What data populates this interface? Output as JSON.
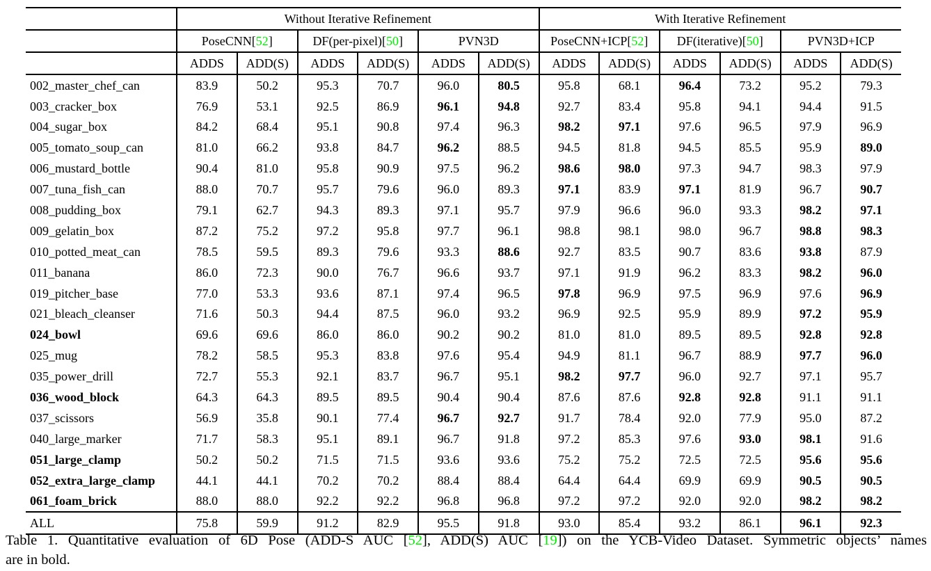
{
  "colors": {
    "reference_green": "#00f000",
    "text": "#000000",
    "rule": "#000000",
    "background": "#ffffff"
  },
  "table": {
    "group_headers": [
      "Without Iterative Refinement",
      "With Iterative Refinement"
    ],
    "method_headers": [
      {
        "label": "PoseCNN",
        "ref": "52"
      },
      {
        "label": "DF(per-pixel)",
        "ref": "50"
      },
      {
        "label": "PVN3D",
        "ref": ""
      },
      {
        "label": "PoseCNN+ICP",
        "ref": "52"
      },
      {
        "label": "DF(iterative)",
        "ref": "50"
      },
      {
        "label": "PVN3D+ICP",
        "ref": ""
      }
    ],
    "metric_header_pair": [
      "ADDS",
      "ADD(S)"
    ],
    "rows": [
      {
        "name": "002_master_chef_can",
        "bold_name": false,
        "values": [
          "83.9",
          "50.2",
          "95.3",
          "70.7",
          "96.0",
          "80.5",
          "95.8",
          "68.1",
          "96.4",
          "73.2",
          "95.2",
          "79.3"
        ],
        "bold_values": [
          5,
          8
        ]
      },
      {
        "name": "003_cracker_box",
        "bold_name": false,
        "values": [
          "76.9",
          "53.1",
          "92.5",
          "86.9",
          "96.1",
          "94.8",
          "92.7",
          "83.4",
          "95.8",
          "94.1",
          "94.4",
          "91.5"
        ],
        "bold_values": [
          4,
          5
        ]
      },
      {
        "name": "004_sugar_box",
        "bold_name": false,
        "values": [
          "84.2",
          "68.4",
          "95.1",
          "90.8",
          "97.4",
          "96.3",
          "98.2",
          "97.1",
          "97.6",
          "96.5",
          "97.9",
          "96.9"
        ],
        "bold_values": [
          6,
          7
        ]
      },
      {
        "name": "005_tomato_soup_can",
        "bold_name": false,
        "values": [
          "81.0",
          "66.2",
          "93.8",
          "84.7",
          "96.2",
          "88.5",
          "94.5",
          "81.8",
          "94.5",
          "85.5",
          "95.9",
          "89.0"
        ],
        "bold_values": [
          4,
          11
        ]
      },
      {
        "name": "006_mustard_bottle",
        "bold_name": false,
        "values": [
          "90.4",
          "81.0",
          "95.8",
          "90.9",
          "97.5",
          "96.2",
          "98.6",
          "98.0",
          "97.3",
          "94.7",
          "98.3",
          "97.9"
        ],
        "bold_values": [
          6,
          7
        ]
      },
      {
        "name": "007_tuna_fish_can",
        "bold_name": false,
        "values": [
          "88.0",
          "70.7",
          "95.7",
          "79.6",
          "96.0",
          "89.3",
          "97.1",
          "83.9",
          "97.1",
          "81.9",
          "96.7",
          "90.7"
        ],
        "bold_values": [
          6,
          8,
          11
        ]
      },
      {
        "name": "008_pudding_box",
        "bold_name": false,
        "values": [
          "79.1",
          "62.7",
          "94.3",
          "89.3",
          "97.1",
          "95.7",
          "97.9",
          "96.6",
          "96.0",
          "93.3",
          "98.2",
          "97.1"
        ],
        "bold_values": [
          10,
          11
        ]
      },
      {
        "name": "009_gelatin_box",
        "bold_name": false,
        "values": [
          "87.2",
          "75.2",
          "97.2",
          "95.8",
          "97.7",
          "96.1",
          "98.8",
          "98.1",
          "98.0",
          "96.7",
          "98.8",
          "98.3"
        ],
        "bold_values": [
          10,
          11
        ]
      },
      {
        "name": "010_potted_meat_can",
        "bold_name": false,
        "values": [
          "78.5",
          "59.5",
          "89.3",
          "79.6",
          "93.3",
          "88.6",
          "92.7",
          "83.5",
          "90.7",
          "83.6",
          "93.8",
          "87.9"
        ],
        "bold_values": [
          5,
          10
        ]
      },
      {
        "name": "011_banana",
        "bold_name": false,
        "values": [
          "86.0",
          "72.3",
          "90.0",
          "76.7",
          "96.6",
          "93.7",
          "97.1",
          "91.9",
          "96.2",
          "83.3",
          "98.2",
          "96.0"
        ],
        "bold_values": [
          10,
          11
        ]
      },
      {
        "name": "019_pitcher_base",
        "bold_name": false,
        "values": [
          "77.0",
          "53.3",
          "93.6",
          "87.1",
          "97.4",
          "96.5",
          "97.8",
          "96.9",
          "97.5",
          "96.9",
          "97.6",
          "96.9"
        ],
        "bold_values": [
          6,
          11
        ]
      },
      {
        "name": "021_bleach_cleanser",
        "bold_name": false,
        "values": [
          "71.6",
          "50.3",
          "94.4",
          "87.5",
          "96.0",
          "93.2",
          "96.9",
          "92.5",
          "95.9",
          "89.9",
          "97.2",
          "95.9"
        ],
        "bold_values": [
          10,
          11
        ]
      },
      {
        "name": "024_bowl",
        "bold_name": true,
        "values": [
          "69.6",
          "69.6",
          "86.0",
          "86.0",
          "90.2",
          "90.2",
          "81.0",
          "81.0",
          "89.5",
          "89.5",
          "92.8",
          "92.8"
        ],
        "bold_values": [
          10,
          11
        ]
      },
      {
        "name": "025_mug",
        "bold_name": false,
        "values": [
          "78.2",
          "58.5",
          "95.3",
          "83.8",
          "97.6",
          "95.4",
          "94.9",
          "81.1",
          "96.7",
          "88.9",
          "97.7",
          "96.0"
        ],
        "bold_values": [
          10,
          11
        ]
      },
      {
        "name": "035_power_drill",
        "bold_name": false,
        "values": [
          "72.7",
          "55.3",
          "92.1",
          "83.7",
          "96.7",
          "95.1",
          "98.2",
          "97.7",
          "96.0",
          "92.7",
          "97.1",
          "95.7"
        ],
        "bold_values": [
          6,
          7
        ]
      },
      {
        "name": "036_wood_block",
        "bold_name": true,
        "values": [
          "64.3",
          "64.3",
          "89.5",
          "89.5",
          "90.4",
          "90.4",
          "87.6",
          "87.6",
          "92.8",
          "92.8",
          "91.1",
          "91.1"
        ],
        "bold_values": [
          8,
          9
        ]
      },
      {
        "name": "037_scissors",
        "bold_name": false,
        "values": [
          "56.9",
          "35.8",
          "90.1",
          "77.4",
          "96.7",
          "92.7",
          "91.7",
          "78.4",
          "92.0",
          "77.9",
          "95.0",
          "87.2"
        ],
        "bold_values": [
          4,
          5
        ]
      },
      {
        "name": "040_large_marker",
        "bold_name": false,
        "values": [
          "71.7",
          "58.3",
          "95.1",
          "89.1",
          "96.7",
          "91.8",
          "97.2",
          "85.3",
          "97.6",
          "93.0",
          "98.1",
          "91.6"
        ],
        "bold_values": [
          9,
          10
        ]
      },
      {
        "name": "051_large_clamp",
        "bold_name": true,
        "values": [
          "50.2",
          "50.2",
          "71.5",
          "71.5",
          "93.6",
          "93.6",
          "75.2",
          "75.2",
          "72.5",
          "72.5",
          "95.6",
          "95.6"
        ],
        "bold_values": [
          10,
          11
        ]
      },
      {
        "name": "052_extra_large_clamp",
        "bold_name": true,
        "values": [
          "44.1",
          "44.1",
          "70.2",
          "70.2",
          "88.4",
          "88.4",
          "64.4",
          "64.4",
          "69.9",
          "69.9",
          "90.5",
          "90.5"
        ],
        "bold_values": [
          10,
          11
        ]
      },
      {
        "name": "061_foam_brick",
        "bold_name": true,
        "values": [
          "88.0",
          "88.0",
          "92.2",
          "92.2",
          "96.8",
          "96.8",
          "97.2",
          "97.2",
          "92.0",
          "92.0",
          "98.2",
          "98.2"
        ],
        "bold_values": [
          10,
          11
        ]
      }
    ],
    "footer_row": {
      "name": "ALL",
      "bold_name": false,
      "values": [
        "75.8",
        "59.9",
        "91.2",
        "82.9",
        "95.5",
        "91.8",
        "93.0",
        "85.4",
        "93.2",
        "86.1",
        "96.1",
        "92.3"
      ],
      "bold_values": [
        10,
        11
      ]
    }
  },
  "caption": {
    "line1_segments": [
      {
        "text": "Table 1. Quantitative evaluation of 6D Pose (ADD-S AUC [",
        "green": false
      },
      {
        "text": "52",
        "green": true
      },
      {
        "text": "], ADD(S) AUC [",
        "green": false
      },
      {
        "text": "19",
        "green": true
      },
      {
        "text": "]) on the YCB-Video Dataset. Symmetric objects’ names",
        "green": false
      }
    ],
    "line2": "are in bold."
  }
}
